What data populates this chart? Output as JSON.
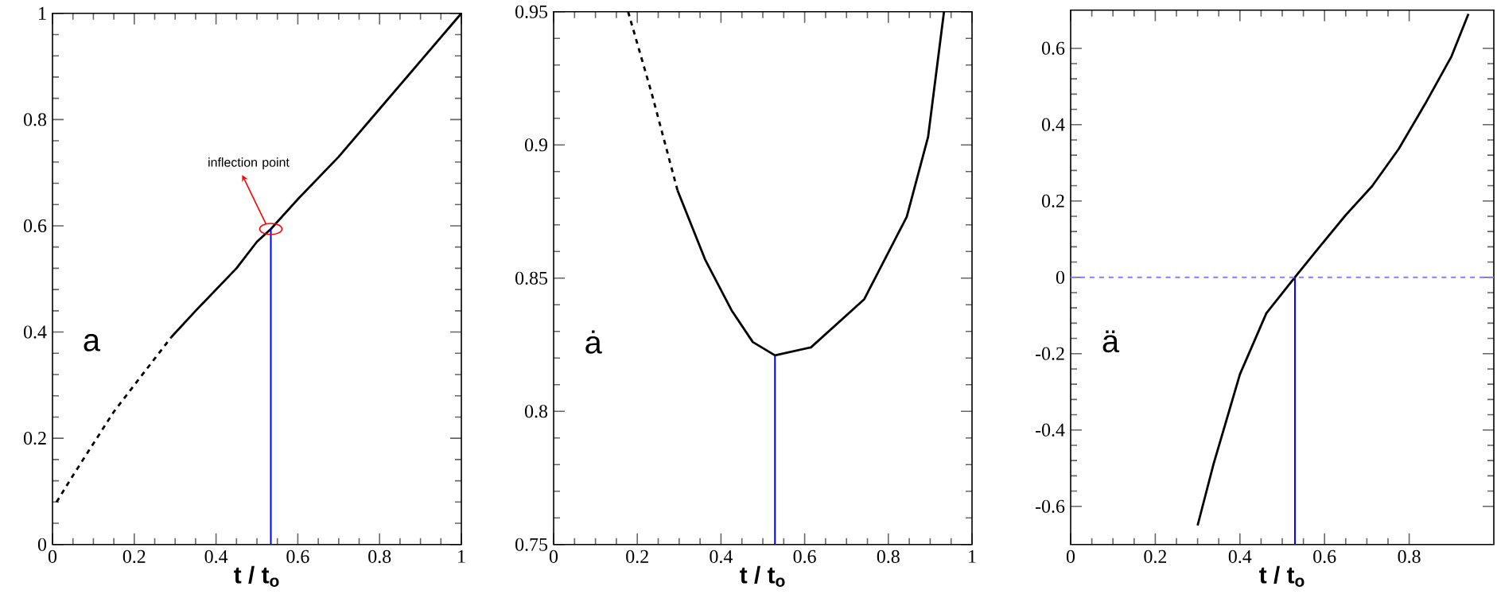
{
  "chart_data": [
    {
      "type": "line",
      "xlabel": "t / t$_{o}$",
      "xlim": [
        0,
        1
      ],
      "xticks": [
        0,
        0.2,
        0.4,
        0.6,
        0.8,
        1
      ],
      "ylim": [
        0,
        1
      ],
      "yticks": [
        0,
        0.2,
        0.4,
        0.6,
        0.8,
        1
      ],
      "series": [
        {
          "color": "#000000",
          "line_style": "dashed",
          "x": [
            0.01,
            0.05,
            0.1,
            0.15,
            0.2,
            0.25,
            0.29
          ],
          "values": [
            0.08,
            0.13,
            0.19,
            0.25,
            0.3,
            0.35,
            0.39
          ]
        },
        {
          "color": "#000000",
          "line_style": "solid",
          "x": [
            0.29,
            0.35,
            0.4,
            0.45,
            0.5,
            0.534,
            0.6,
            0.7,
            0.8,
            0.9,
            1.0
          ],
          "values": [
            0.39,
            0.44,
            0.48,
            0.52,
            0.57,
            0.594,
            0.65,
            0.73,
            0.82,
            0.91,
            1.0
          ]
        },
        {
          "color": "#0000ff",
          "line_style": "solid",
          "x": [
            0.534,
            0.534
          ],
          "values": [
            0,
            0.594
          ]
        }
      ],
      "annotations": [
        "a",
        {
          "text": "inflection point",
          "x": 0.534,
          "y": 0.594
        }
      ]
    },
    {
      "type": "line",
      "xlabel": "t / t$_{o}$",
      "xlim": [
        0,
        1
      ],
      "xticks": [
        0,
        0.2,
        0.4,
        0.6,
        0.8,
        1
      ],
      "ylim": [
        0.75,
        0.95
      ],
      "yticks": [
        0.75,
        0.8,
        0.85,
        0.9,
        0.95
      ],
      "series": [
        {
          "color": "#000000",
          "line_style": "dashed",
          "x": [
            0.178,
            0.235,
            0.296
          ],
          "values": [
            0.95,
            0.919,
            0.883
          ]
        },
        {
          "color": "#000000",
          "line_style": "solid",
          "x": [
            0.296,
            0.362,
            0.425,
            0.476,
            0.529,
            0.615,
            0.742,
            0.844,
            0.895,
            0.933
          ],
          "values": [
            0.883,
            0.857,
            0.838,
            0.826,
            0.821,
            0.824,
            0.842,
            0.873,
            0.903,
            0.95
          ]
        },
        {
          "color": "#0000ff",
          "line_style": "solid",
          "x": [
            0.529,
            0.529
          ],
          "values": [
            0.75,
            0.821
          ]
        }
      ],
      "annotations": [
        "ȧ"
      ]
    },
    {
      "type": "line",
      "xlabel": "t / t$_{o}$",
      "xlim": [
        0,
        1
      ],
      "xticks": [
        0,
        0.2,
        0.4,
        0.6,
        0.8
      ],
      "ylim": [
        -0.7,
        0.7
      ],
      "yticks": [
        -0.6,
        -0.4,
        -0.2,
        0,
        0.2,
        0.4,
        0.6
      ],
      "series": [
        {
          "color": "#000000",
          "line_style": "solid",
          "x": [
            0.3,
            0.3375,
            0.4,
            0.4625,
            0.53,
            0.5875,
            0.65,
            0.7125,
            0.775,
            0.8375,
            0.9,
            0.94
          ],
          "values": [
            -0.65,
            -0.49,
            -0.254,
            -0.094,
            0,
            0.079,
            0.163,
            0.239,
            0.336,
            0.454,
            0.579,
            0.69
          ]
        },
        {
          "color": "#0000ff",
          "line_style": "solid",
          "x": [
            0.53,
            0.53
          ],
          "values": [
            -0.7,
            0
          ]
        }
      ],
      "ref_lines": [
        {
          "axis": "y",
          "value": 0,
          "color": "#8080ff",
          "line_style": "dashed"
        }
      ],
      "annotations": [
        "ä"
      ]
    }
  ]
}
